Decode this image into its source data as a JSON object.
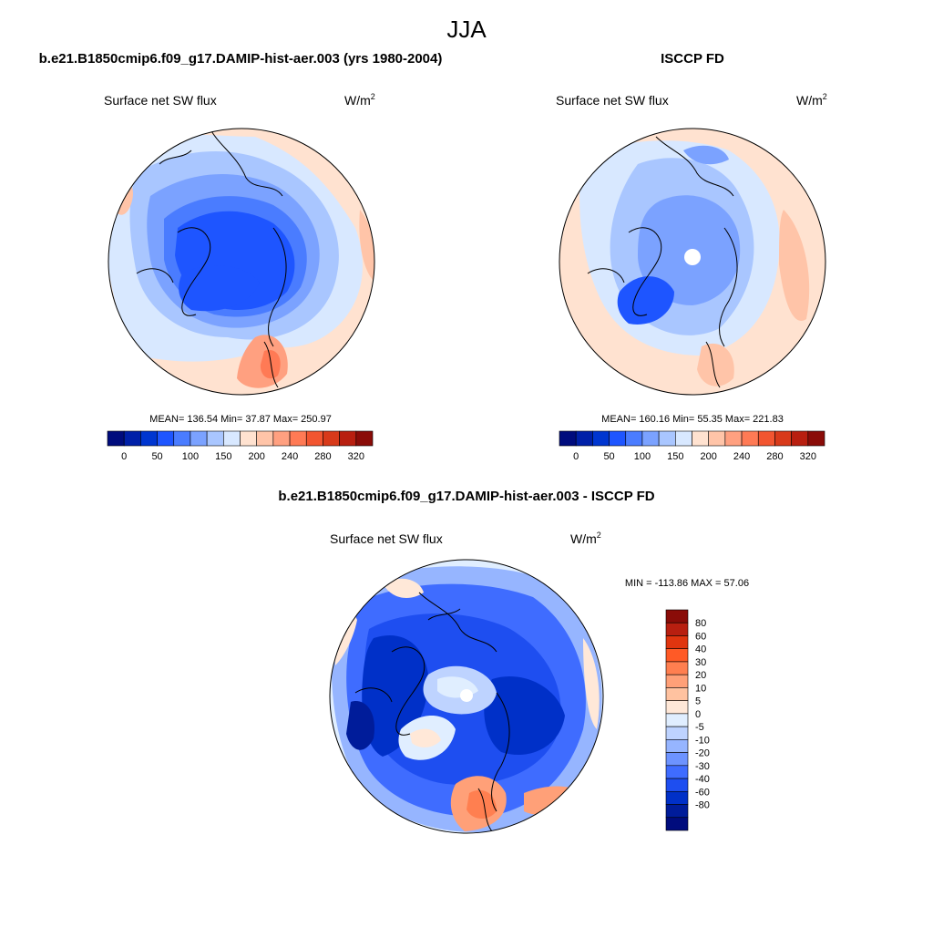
{
  "figure": {
    "season": "JJA",
    "model_title": "b.e21.B1850cmip6.f09_g17.DAMIP-hist-aer.003 (yrs 1980-2004)",
    "obs_title": "ISCCP FD",
    "diff_title": "b.e21.B1850cmip6.f09_g17.DAMIP-hist-aer.003 - ISCCP FD"
  },
  "panels": {
    "model": {
      "variable": "Surface net SW flux",
      "units": "W/m",
      "units_sup": "2",
      "stats": "MEAN= 136.54  Min=  37.87  Max= 250.97"
    },
    "obs": {
      "variable": "Surface net SW flux",
      "units": "W/m",
      "units_sup": "2",
      "stats": "MEAN= 160.16  Min=  55.35  Max= 221.83"
    },
    "diff": {
      "variable": "Surface net SW flux",
      "units": "W/m",
      "units_sup": "2",
      "stats": "MIN = -113.86 MAX =  57.06"
    }
  },
  "colorbars": {
    "abs": {
      "colors": [
        "#000c7d",
        "#0020a8",
        "#0036d0",
        "#1e55ff",
        "#4a7cff",
        "#7ba2ff",
        "#a9c6ff",
        "#d8e8ff",
        "#ffe2d0",
        "#ffc4a8",
        "#ffa080",
        "#ff7a55",
        "#f25530",
        "#d83a1a",
        "#b81f10",
        "#8a0c08"
      ],
      "tick_labels": [
        "0",
        "50",
        "100",
        "150",
        "200",
        "240",
        "280",
        "320"
      ]
    },
    "diff": {
      "colors": [
        "#8a0c08",
        "#b81f10",
        "#e0350f",
        "#ff5a26",
        "#ff7f50",
        "#ffa078",
        "#ffc2a0",
        "#ffe8d8",
        "#e0eeff",
        "#bed3ff",
        "#96b5ff",
        "#6d93ff",
        "#3f6cff",
        "#1e4ef0",
        "#0030c8",
        "#001c9a",
        "#000c7d"
      ],
      "tick_labels": [
        "80",
        "60",
        "40",
        "30",
        "20",
        "10",
        "5",
        "0",
        "-5",
        "-10",
        "-20",
        "-30",
        "-40",
        "-60",
        "-80"
      ]
    }
  },
  "chart_data": [
    {
      "type": "heatmap",
      "projection": "north polar stereographic",
      "title": "b.e21.B1850cmip6.f09_g17.DAMIP-hist-aer.003 (yrs 1980-2004)",
      "variable": "Surface net SW flux",
      "units": "W/m2",
      "mean": 136.54,
      "min": 37.87,
      "max": 250.97,
      "contour_levels": [
        0,
        25,
        50,
        75,
        100,
        125,
        150,
        175,
        200,
        220,
        240,
        260,
        280,
        300,
        320
      ],
      "colorbar_ticks": [
        0,
        50,
        100,
        150,
        200,
        240,
        280,
        320
      ]
    },
    {
      "type": "heatmap",
      "projection": "north polar stereographic",
      "title": "ISCCP FD",
      "variable": "Surface net SW flux",
      "units": "W/m2",
      "mean": 160.16,
      "min": 55.35,
      "max": 221.83,
      "contour_levels": [
        0,
        25,
        50,
        75,
        100,
        125,
        150,
        175,
        200,
        220,
        240,
        260,
        280,
        300,
        320
      ],
      "colorbar_ticks": [
        0,
        50,
        100,
        150,
        200,
        240,
        280,
        320
      ]
    },
    {
      "type": "heatmap",
      "projection": "north polar stereographic",
      "title": "b.e21.B1850cmip6.f09_g17.DAMIP-hist-aer.003 - ISCCP FD",
      "variable": "Surface net SW flux",
      "units": "W/m2",
      "min": -113.86,
      "max": 57.06,
      "contour_levels": [
        -80,
        -60,
        -40,
        -30,
        -20,
        -10,
        -5,
        0,
        5,
        10,
        20,
        30,
        40,
        60,
        80
      ]
    }
  ]
}
